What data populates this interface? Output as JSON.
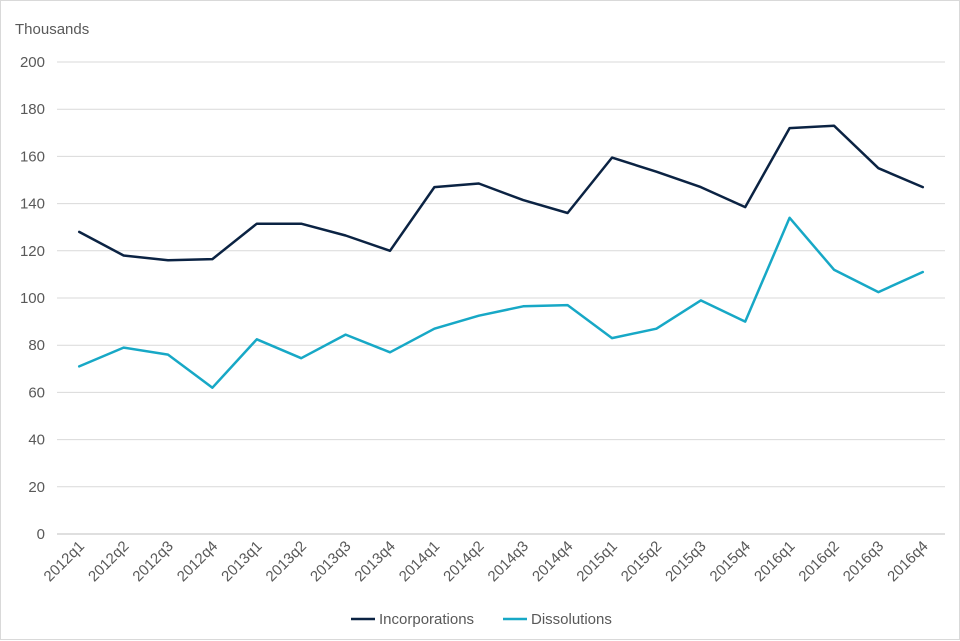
{
  "chart_data": {
    "type": "line",
    "title": "",
    "ylabel": "Thousands",
    "xlabel": "",
    "ylim": [
      0,
      200
    ],
    "yticks": [
      0,
      20,
      40,
      60,
      80,
      100,
      120,
      140,
      160,
      180,
      200
    ],
    "grid": true,
    "legend_position": "bottom",
    "categories": [
      "2012q1",
      "2012q2",
      "2012q3",
      "2012q4",
      "2013q1",
      "2013q2",
      "2013q3",
      "2013q4",
      "2014q1",
      "2014q2",
      "2014q3",
      "2014q4",
      "2015q1",
      "2015q2",
      "2015q3",
      "2015q4",
      "2016q1",
      "2016q2",
      "2016q3",
      "2016q4"
    ],
    "series": [
      {
        "name": "Incorporations",
        "color": "#0b2343",
        "values": [
          128,
          118,
          116,
          116.5,
          131.5,
          131.5,
          126.5,
          120,
          147,
          148.5,
          141.5,
          136,
          159.5,
          153.5,
          147,
          138.5,
          172,
          173,
          155,
          147
        ]
      },
      {
        "name": "Dissolutions",
        "color": "#17a8c6",
        "values": [
          71,
          79,
          76,
          62,
          82.5,
          74.5,
          84.5,
          77,
          87,
          92.5,
          96.5,
          97,
          83,
          87,
          99,
          90,
          134,
          112,
          102.5,
          111
        ]
      }
    ]
  }
}
